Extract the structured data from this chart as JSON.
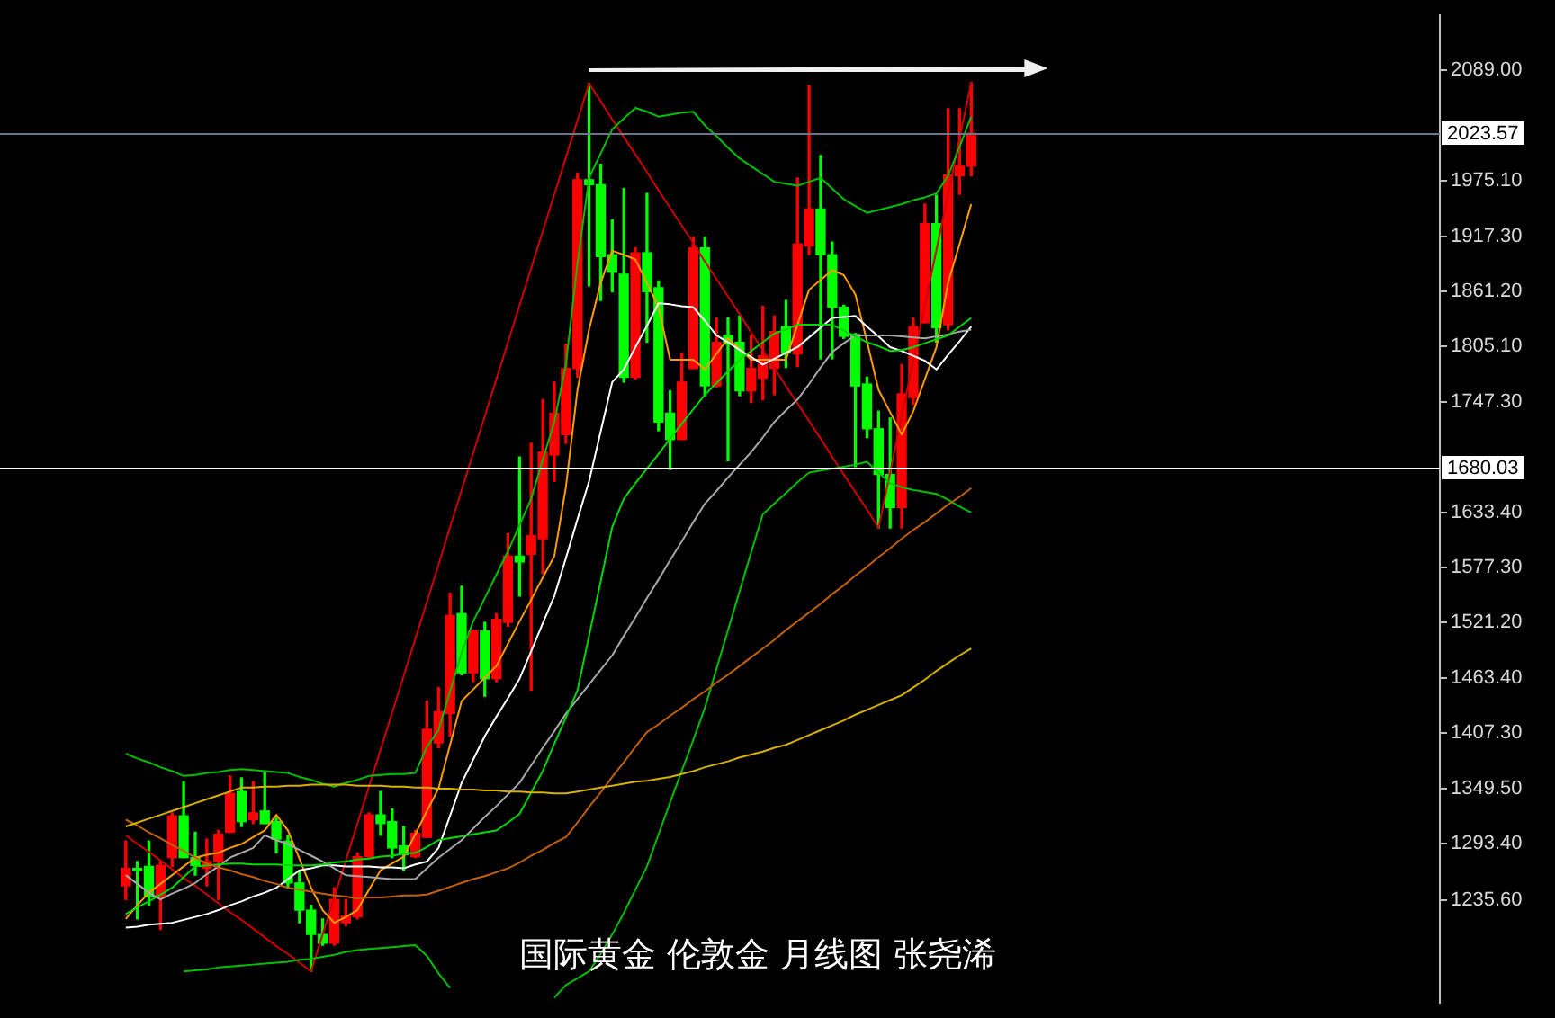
{
  "chart_data": {
    "type": "candlestick",
    "categories": [
      null,
      null,
      null,
      null,
      null,
      null,
      null,
      null,
      null,
      null,
      null,
      null,
      null,
      null,
      null,
      null,
      null,
      null,
      null,
      null,
      null,
      null,
      null,
      null,
      null,
      null,
      null,
      null,
      null,
      null,
      null,
      null,
      null,
      null,
      null,
      null,
      null,
      null,
      null,
      null,
      null,
      null,
      null,
      null,
      null,
      null,
      null,
      null,
      null,
      null,
      null,
      null,
      null,
      null,
      null,
      null,
      null,
      null,
      null,
      null,
      null,
      null,
      null,
      null,
      null,
      null,
      null,
      null,
      null,
      null,
      null,
      null,
      null,
      null
    ],
    "ohlc": [
      [
        1250,
        1296,
        1236,
        1268
      ],
      [
        1268,
        1275,
        1216,
        1266
      ],
      [
        1270,
        1296,
        1230,
        1239
      ],
      [
        1239,
        1275,
        1205,
        1271
      ],
      [
        1279,
        1325,
        1270,
        1322
      ],
      [
        1322,
        1357,
        1279,
        1279
      ],
      [
        1279,
        1305,
        1261,
        1271
      ],
      [
        1268,
        1298,
        1250,
        1275
      ],
      [
        1275,
        1307,
        1236,
        1303
      ],
      [
        1305,
        1363,
        1305,
        1345
      ],
      [
        1347,
        1361,
        1311,
        1316
      ],
      [
        1318,
        1357,
        1314,
        1325
      ],
      [
        1327,
        1366,
        1314,
        1314
      ],
      [
        1316,
        1320,
        1284,
        1298
      ],
      [
        1296,
        1302,
        1248,
        1253
      ],
      [
        1253,
        1266,
        1212,
        1225
      ],
      [
        1225,
        1230,
        1162,
        1200
      ],
      [
        1200,
        1216,
        1189,
        1191
      ],
      [
        1191,
        1248,
        1189,
        1236
      ],
      [
        1212,
        1236,
        1209,
        1219
      ],
      [
        1218,
        1284,
        1216,
        1280
      ],
      [
        1280,
        1325,
        1279,
        1323
      ],
      [
        1323,
        1347,
        1302,
        1314
      ],
      [
        1316,
        1329,
        1279,
        1289
      ],
      [
        1291,
        1311,
        1266,
        1282
      ],
      [
        1280,
        1307,
        1279,
        1304
      ],
      [
        1300,
        1440,
        1300,
        1411
      ],
      [
        1397,
        1454,
        1392,
        1429
      ],
      [
        1427,
        1551,
        1404,
        1528
      ],
      [
        1530,
        1558,
        1467,
        1469
      ],
      [
        1469,
        1513,
        1460,
        1512
      ],
      [
        1512,
        1521,
        1445,
        1463
      ],
      [
        1463,
        1530,
        1460,
        1524
      ],
      [
        1521,
        1612,
        1517,
        1589
      ],
      [
        1589,
        1691,
        1548,
        1583
      ],
      [
        1591,
        1705,
        1451,
        1610
      ],
      [
        1607,
        1750,
        1571,
        1696
      ],
      [
        1693,
        1768,
        1666,
        1736
      ],
      [
        1714,
        1807,
        1705,
        1782
      ],
      [
        1782,
        1983,
        1773,
        1976
      ],
      [
        1976,
        2075,
        1867,
        1971
      ],
      [
        1971,
        1992,
        1852,
        1897
      ],
      [
        1899,
        1935,
        1861,
        1881
      ],
      [
        1879,
        1967,
        1768,
        1773
      ],
      [
        1773,
        1906,
        1771,
        1901
      ],
      [
        1901,
        1962,
        1809,
        1861
      ],
      [
        1865,
        1872,
        1718,
        1727
      ],
      [
        1736,
        1759,
        1678,
        1709
      ],
      [
        1709,
        1798,
        1709,
        1768
      ],
      [
        1782,
        1917,
        1782,
        1906
      ],
      [
        1906,
        1917,
        1754,
        1764
      ],
      [
        1764,
        1834,
        1763,
        1809
      ],
      [
        1816,
        1834,
        1687,
        1807
      ],
      [
        1809,
        1836,
        1754,
        1759
      ],
      [
        1759,
        1816,
        1747,
        1782
      ],
      [
        1772,
        1846,
        1750,
        1795
      ],
      [
        1782,
        1836,
        1755,
        1820
      ],
      [
        1825,
        1852,
        1783,
        1798
      ],
      [
        1797,
        1978,
        1784,
        1910
      ],
      [
        1908,
        2073,
        1899,
        1946
      ],
      [
        1946,
        2001,
        1792,
        1899
      ],
      [
        1899,
        1912,
        1792,
        1845
      ],
      [
        1845,
        1847,
        1813,
        1815
      ],
      [
        1817,
        1818,
        1681,
        1764
      ],
      [
        1766,
        1773,
        1711,
        1720
      ],
      [
        1720,
        1738,
        1618,
        1673
      ],
      [
        1673,
        1731,
        1618,
        1639
      ],
      [
        1639,
        1786,
        1618,
        1756
      ],
      [
        1752,
        1834,
        1745,
        1825
      ],
      [
        1829,
        1951,
        1829,
        1931
      ],
      [
        1931,
        1960,
        1809,
        1824
      ],
      [
        1827,
        2049,
        1822,
        1981
      ],
      [
        1980,
        2049,
        1961,
        1990
      ],
      [
        1990,
        2076,
        1980,
        2024
      ]
    ],
    "colors": [
      "#ff0000",
      "#00ff00",
      "#00ff00",
      "#ff0000",
      "#ff0000",
      "#00ff00",
      "#00ff00",
      "#ff0000",
      "#ff0000",
      "#ff0000",
      "#00ff00",
      "#ff0000",
      "#00ff00",
      "#00ff00",
      "#00ff00",
      "#00ff00",
      "#00ff00",
      "#00ff00",
      "#ff0000",
      "#ff0000",
      "#ff0000",
      "#ff0000",
      "#00ff00",
      "#00ff00",
      "#00ff00",
      "#ff0000",
      "#ff0000",
      "#ff0000",
      "#ff0000",
      "#00ff00",
      "#ff0000",
      "#00ff00",
      "#ff0000",
      "#ff0000",
      "#00ff00",
      "#ff0000",
      "#ff0000",
      "#ff0000",
      "#ff0000",
      "#ff0000",
      "#00ff00",
      "#00ff00",
      "#00ff00",
      "#00ff00",
      "#ff0000",
      "#00ff00",
      "#00ff00",
      "#00ff00",
      "#ff0000",
      "#ff0000",
      "#00ff00",
      "#ff0000",
      "#00ff00",
      "#00ff00",
      "#ff0000",
      "#ff0000",
      "#ff0000",
      "#00ff00",
      "#ff0000",
      "#ff0000",
      "#00ff00",
      "#00ff00",
      "#00ff00",
      "#00ff00",
      "#00ff00",
      "#00ff00",
      "#00ff00",
      "#ff0000",
      "#ff0000",
      "#ff0000",
      "#00ff00",
      "#ff0000",
      "#ff0000",
      "#ff0000"
    ],
    "series": [
      {
        "type": "line",
        "color": "#d8b000",
        "values": [
          1311,
          1315,
          1319,
          1323,
          1327,
          1331,
          1335,
          1339,
          1343,
          1347,
          1351,
          1351,
          1352,
          1352,
          1353,
          1353,
          1354,
          1354,
          1354,
          1354,
          1353,
          1353,
          1353,
          1352,
          1352,
          1351,
          1351,
          1350,
          1350,
          1349,
          1349,
          1348,
          1348,
          1347,
          1347,
          1346,
          1346,
          1345,
          1345,
          1347,
          1349,
          1351,
          1353,
          1355,
          1357,
          1358,
          1360,
          1362,
          1365,
          1368,
          1372,
          1375,
          1378,
          1382,
          1385,
          1388,
          1392,
          1395,
          1400,
          1405,
          1410,
          1415,
          1420,
          1426,
          1431,
          1436,
          1441,
          1446,
          1454,
          1462,
          1471,
          1479,
          1487,
          1494
        ]
      },
      {
        "type": "line",
        "color": "#c0600c",
        "values": [
          1318,
          1312,
          1305,
          1299,
          1292,
          1286,
          1279,
          1273,
          1269,
          1266,
          1262,
          1259,
          1255,
          1252,
          1248,
          1246,
          1244,
          1242,
          1240,
          1239,
          1237,
          1238,
          1238,
          1239,
          1240,
          1240,
          1241,
          1245,
          1249,
          1253,
          1257,
          1260,
          1264,
          1268,
          1274,
          1281,
          1287,
          1294,
          1300,
          1315,
          1331,
          1346,
          1362,
          1377,
          1393,
          1408,
          1416,
          1425,
          1433,
          1442,
          1450,
          1459,
          1467,
          1476,
          1485,
          1494,
          1503,
          1513,
          1522,
          1531,
          1540,
          1550,
          1559,
          1569,
          1578,
          1588,
          1597,
          1607,
          1616,
          1624,
          1633,
          1642,
          1650,
          1659
        ]
      },
      {
        "type": "line",
        "color": "#00c000",
        "values": [
          1386,
          1381,
          1377,
          1372,
          1368,
          1363,
          1364,
          1366,
          1367,
          1369,
          1370,
          1369,
          1368,
          1367,
          1366,
          1362,
          1359,
          1355,
          1352,
          1356,
          1359,
          1363,
          1364,
          1365,
          1365,
          1366,
          1393,
          1410,
          1450,
          1490,
          1522,
          1546,
          1570,
          1594,
          1621,
          1648,
          1688,
          1727,
          1786,
          1890,
          1978,
          2003,
          2028,
          2039,
          2050,
          2046,
          2041,
          2043,
          2045,
          2046,
          2032,
          2021,
          2009,
          1998,
          1990,
          1982,
          1974,
          1972,
          1970,
          1974,
          1978,
          1967,
          1956,
          1949,
          1942,
          1945,
          1948,
          1951,
          1955,
          1958,
          1962,
          1980,
          2010,
          2041
        ]
      },
      {
        "type": "line",
        "color": "#00c000",
        "values": [
          null,
          null,
          null,
          null,
          null,
          1162,
          1163,
          1164,
          1166,
          1167,
          1168,
          1169,
          1170,
          1171,
          1172,
          1174,
          1175,
          1177,
          1179,
          1182,
          1184,
          1185,
          1186,
          1187,
          1188,
          1189,
          1178,
          1160,
          1145,
          null,
          null,
          null,
          null,
          null,
          null,
          null,
          null,
          1135,
          1148,
          1155,
          1162,
          1180,
          1200,
          1222,
          1246,
          1270,
          1303,
          1336,
          1368,
          1400,
          1433,
          1473,
          1513,
          1553,
          1593,
          1632,
          1643,
          1654,
          1665,
          1675,
          1677,
          1679,
          1681,
          1683,
          1686,
          1675,
          1664,
          1660,
          1657,
          1655,
          1653,
          1647,
          1640,
          1634
        ]
      },
      {
        "type": "line",
        "color": "#00d800",
        "values": [
          1221,
          1228,
          1234,
          1241,
          1248,
          1259,
          1270,
          1271,
          1272,
          1273,
          1273,
          1272,
          1272,
          1272,
          1271,
          1271,
          1271,
          1272,
          1274,
          1275,
          1277,
          1278,
          1280,
          1281,
          1283,
          1284,
          1290,
          1297,
          1299,
          1301,
          1303,
          1305,
          1307,
          1315,
          1324,
          1346,
          1368,
          1396,
          1423,
          1451,
          1507,
          1563,
          1619,
          1648,
          1664,
          1679,
          1694,
          1710,
          1725,
          1740,
          1755,
          1767,
          1779,
          1791,
          1800,
          1809,
          1818,
          1822,
          1827,
          1827,
          1827,
          1827,
          1821,
          1815,
          1809,
          1805,
          1800,
          1801,
          1804,
          1808,
          1812,
          1816,
          1825,
          1834
        ]
      },
      {
        "type": "line",
        "color": "#a8a8a8",
        "values": [
          1261,
          1252,
          1243,
          1236,
          1242,
          1247,
          1253,
          1262,
          1270,
          1279,
          1284,
          1289,
          1302,
          1297,
          1293,
          1287,
          1281,
          1275,
          1268,
          1261,
          1260,
          1259,
          1258,
          1257,
          1257,
          1257,
          1268,
          1279,
          1288,
          1297,
          1309,
          1321,
          1332,
          1344,
          1356,
          1374,
          1392,
          1409,
          1427,
          1442,
          1457,
          1472,
          1487,
          1507,
          1526,
          1546,
          1565,
          1585,
          1604,
          1624,
          1643,
          1656,
          1670,
          1683,
          1696,
          1711,
          1727,
          1739,
          1750,
          1766,
          1783,
          1799,
          1808,
          1816,
          1816,
          1816,
          1816,
          1815,
          1814,
          1813,
          1815,
          1817,
          1820,
          1822
        ]
      },
      {
        "type": "line",
        "color": "#ffffff",
        "values": [
          1207,
          1208,
          1210,
          1211,
          1212,
          1215,
          1218,
          1221,
          1225,
          1230,
          1234,
          1239,
          1243,
          1248,
          1257,
          1266,
          1268,
          1271,
          1271,
          1270,
          1270,
          1270,
          1269,
          1269,
          1268,
          1272,
          1275,
          1289,
          1322,
          1356,
          1380,
          1404,
          1424,
          1443,
          1463,
          1491,
          1520,
          1548,
          1587,
          1627,
          1666,
          1717,
          1768,
          1781,
          1804,
          1826,
          1849,
          1848,
          1846,
          1845,
          1831,
          1816,
          1809,
          1801,
          1794,
          1786,
          1792,
          1798,
          1804,
          1814,
          1824,
          1834,
          1835,
          1836,
          1825,
          1815,
          1804,
          1800,
          1795,
          1790,
          1781,
          1796,
          1810,
          1825
        ]
      },
      {
        "type": "line",
        "color": "#ff9c00",
        "values": [
          1216,
          1230,
          1243,
          1252,
          1261,
          1270,
          1279,
          1282,
          1284,
          1289,
          1293,
          1300,
          1307,
          1323,
          1307,
          1278,
          1248,
          1225,
          1212,
          1218,
          1225,
          1246,
          1266,
          1273,
          1280,
          1303,
          1327,
          1350,
          1395,
          1440,
          1452,
          1464,
          1476,
          1499,
          1522,
          1544,
          1567,
          1589,
          1660,
          1760,
          1822,
          1870,
          1903,
          1899,
          1894,
          1870,
          1845,
          1791,
          1791,
          1791,
          1781,
          1797,
          1813,
          1802,
          1791,
          1791,
          1791,
          1791,
          1827,
          1863,
          1873,
          1883,
          1878,
          1858,
          1810,
          1760,
          1737,
          1714,
          1738,
          1771,
          1804,
          1870,
          1910,
          1951
        ]
      },
      {
        "type": "line",
        "color": "#d00000",
        "values": [
          1302,
          1293,
          1285,
          1276,
          1267,
          1258,
          1250,
          1241,
          1232,
          1223,
          1215,
          1206,
          1197,
          1188,
          1180,
          1171,
          1162,
          1200,
          1238,
          1276,
          1314,
          1352,
          1390,
          1428,
          1466,
          1504,
          1542,
          1580,
          1619,
          1657,
          1695,
          1733,
          1771,
          1809,
          1847,
          1885,
          1923,
          1961,
          1999,
          2037,
          2075,
          2057,
          2038,
          2020,
          2002,
          1984,
          1965,
          1947,
          1929,
          1911,
          1892,
          1874,
          1856,
          1838,
          1819,
          1801,
          1783,
          1764,
          1746,
          1728,
          1710,
          1691,
          1673,
          1655,
          1637,
          1618,
          1675,
          1733,
          1790,
          1847,
          1904,
          1961,
          2019,
          2076
        ]
      }
    ],
    "ylim": [
      1130,
      2145
    ],
    "yticks": [
      {
        "value": 2089,
        "label": "2089.00"
      },
      {
        "value": 1975.1,
        "label": "1975.10"
      },
      {
        "value": 1917.3,
        "label": "1917.30"
      },
      {
        "value": 1861.2,
        "label": "1861.20"
      },
      {
        "value": 1805.1,
        "label": "1805.10"
      },
      {
        "value": 1747.3,
        "label": "1747.30"
      },
      {
        "value": 1633.4,
        "label": "1633.40"
      },
      {
        "value": 1577.3,
        "label": "1577.30"
      },
      {
        "value": 1521.2,
        "label": "1521.20"
      },
      {
        "value": 1463.4,
        "label": "1463.40"
      },
      {
        "value": 1407.3,
        "label": "1407.30"
      },
      {
        "value": 1349.5,
        "label": "1349.50"
      },
      {
        "value": 1293.4,
        "label": "1293.40"
      },
      {
        "value": 1235.6,
        "label": "1235.60"
      }
    ],
    "ref_lines": [
      {
        "axis": "y",
        "value": 2023.57,
        "label": "2023.57",
        "color": "#6c7888"
      },
      {
        "axis": "y",
        "value": 1680.03,
        "label": "1680.03",
        "color": "#ffffff"
      }
    ],
    "tick_labels": "y",
    "marker": "none",
    "annotations": [
      "国际黄金 伦敦金 月线图 张尧浠"
    ]
  }
}
